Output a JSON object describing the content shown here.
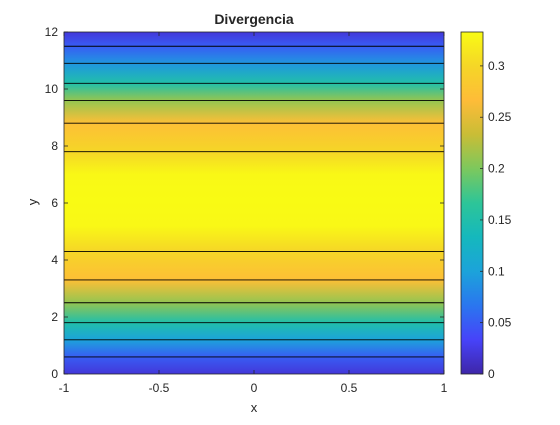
{
  "chart_data": {
    "type": "heatmap",
    "title": "Divergencia",
    "xlabel": "x",
    "ylabel": "y",
    "xlim": [
      -1,
      1
    ],
    "ylim": [
      0,
      12
    ],
    "x_ticks": [
      -1,
      -0.5,
      0,
      0.5,
      1
    ],
    "y_ticks": [
      0,
      2,
      4,
      6,
      8,
      10,
      12
    ],
    "colormap": "parula",
    "colorbar": {
      "range": [
        0,
        0.333
      ],
      "ticks": [
        0,
        0.05,
        0.1,
        0.15,
        0.2,
        0.25,
        0.3
      ]
    },
    "field": {
      "varies_along": "y",
      "y": [
        0,
        0.6,
        1.2,
        1.8,
        2.5,
        3.3,
        4.3,
        5.2,
        6.1,
        7.0,
        7.8,
        8.8,
        9.6,
        10.2,
        10.9,
        11.5,
        12
      ],
      "values": [
        0.02,
        0.05,
        0.1,
        0.15,
        0.21,
        0.27,
        0.3,
        0.33,
        0.333,
        0.33,
        0.3,
        0.27,
        0.21,
        0.15,
        0.09,
        0.05,
        0.02
      ]
    },
    "contour_levels_y": [
      0.6,
      1.2,
      1.8,
      2.5,
      3.3,
      4.3,
      7.8,
      8.8,
      9.6,
      10.2,
      10.9,
      11.5
    ]
  },
  "colors": {
    "parula": [
      "#3e26a8",
      "#4743f9",
      "#2a76ef",
      "#1ca3da",
      "#15b8bd",
      "#2dc598",
      "#7cc85d",
      "#c9bd36",
      "#febc38",
      "#f5d627",
      "#f9fb14"
    ],
    "axis": "#262626",
    "contour": "#000000"
  }
}
